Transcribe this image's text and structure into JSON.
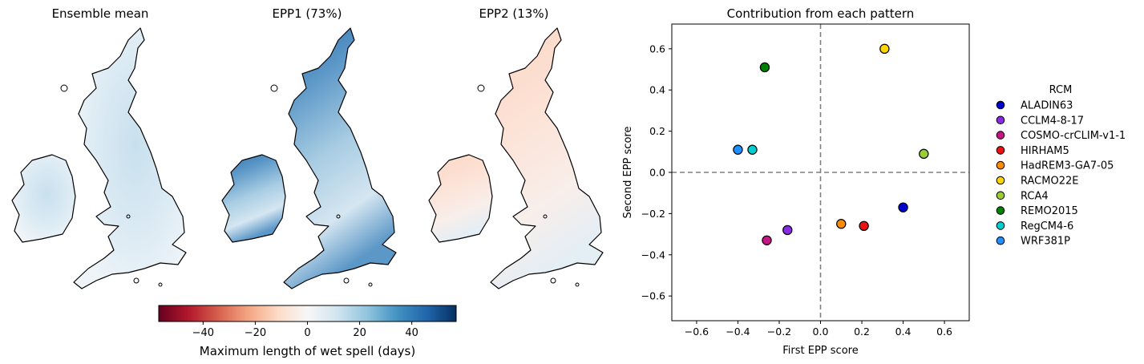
{
  "maps": {
    "titles": [
      "Ensemble mean",
      "EPP1 (73%)",
      "EPP2 (13%)"
    ],
    "colorbar": {
      "label": "Maximum length of wet spell (days)",
      "ticks": [
        -40,
        -20,
        0,
        20,
        40
      ],
      "range": [
        -57,
        57
      ],
      "cmap": [
        "#67001f",
        "#b2182b",
        "#d6604d",
        "#f4a582",
        "#fddbc7",
        "#f7f7f7",
        "#d1e5f0",
        "#92c5de",
        "#4393c3",
        "#2166ac",
        "#053061"
      ]
    }
  },
  "chart_data": {
    "type": "scatter",
    "title": "Contribution from each pattern",
    "xlabel": "First EPP score",
    "ylabel": "Second EPP score",
    "xlim": [
      -0.72,
      0.72
    ],
    "ylim": [
      -0.72,
      0.72
    ],
    "xticks": [
      -0.6,
      -0.4,
      -0.2,
      0.0,
      0.2,
      0.4,
      0.6
    ],
    "yticks": [
      -0.6,
      -0.4,
      -0.2,
      0.0,
      0.2,
      0.4,
      0.6
    ],
    "tick_labels": [
      "−0.6",
      "−0.4",
      "−0.2",
      "0.0",
      "0.2",
      "0.4",
      "0.6"
    ],
    "reference_lines": {
      "x": 0,
      "y": 0,
      "style": "dashed",
      "color": "#808080"
    },
    "legend": {
      "title": "RCM",
      "placement": "right-outside"
    },
    "series": [
      {
        "name": "ALADIN63",
        "x": 0.4,
        "y": -0.17,
        "color": "#0000cd"
      },
      {
        "name": "CCLM4-8-17",
        "x": -0.16,
        "y": -0.28,
        "color": "#8a2be2"
      },
      {
        "name": "COSMO-crCLIM-v1-1",
        "x": -0.26,
        "y": -0.33,
        "color": "#c71585"
      },
      {
        "name": "HIRHAM5",
        "x": 0.21,
        "y": -0.26,
        "color": "#ee1111"
      },
      {
        "name": "HadREM3-GA7-05",
        "x": 0.1,
        "y": -0.25,
        "color": "#ff8c00"
      },
      {
        "name": "RACMO22E",
        "x": 0.31,
        "y": 0.6,
        "color": "#ffd700"
      },
      {
        "name": "RCA4",
        "x": 0.5,
        "y": 0.09,
        "color": "#9acd32"
      },
      {
        "name": "REMO2015",
        "x": -0.27,
        "y": 0.51,
        "color": "#008000"
      },
      {
        "name": "RegCM4-6",
        "x": -0.33,
        "y": 0.11,
        "color": "#00ced1"
      },
      {
        "name": "WRF381P",
        "x": -0.4,
        "y": 0.11,
        "color": "#1e90ff"
      }
    ]
  }
}
